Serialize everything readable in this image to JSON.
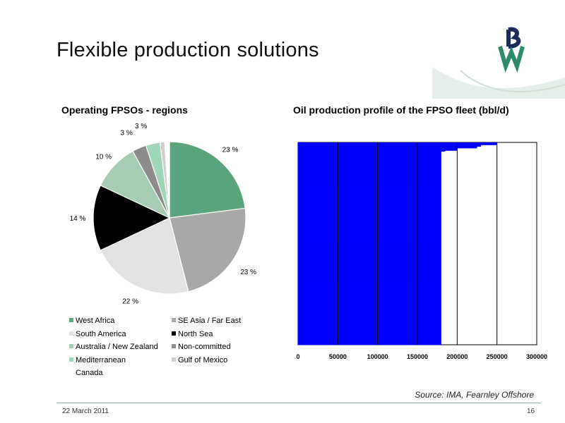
{
  "slide": {
    "title": "Flexible production solutions",
    "logo_text": "BW",
    "source": "Source: IMA, Fearnley Offshore",
    "date": "22 March  2011",
    "page_number": "16"
  },
  "colors": {
    "bar_fill": "#0000ff",
    "logo_green": "#2f8a6a",
    "logo_navy": "#1c2c5a",
    "footer_line": "#7fb9a6"
  },
  "chart_data": [
    {
      "type": "pie",
      "title": "Operating FPSOs - regions",
      "legend_position": "bottom",
      "categories": [
        "West Africa",
        "SE Asia / Far East",
        "South America",
        "North Sea",
        "Australia / New Zealand",
        "Non-committed",
        "Mediterranean",
        "Gulf of Mexico",
        "Canada"
      ],
      "values": [
        23,
        23,
        22,
        14,
        10,
        3,
        3,
        1,
        1
      ],
      "labels": [
        "23 %",
        "23 %",
        "22 %",
        "14 %",
        "10 %",
        "3 %",
        "3 %",
        "1 %",
        "1 %"
      ],
      "colors": [
        "#5aa57c",
        "#a8a8a8",
        "#e2e2e2",
        "#000000",
        "#a6ccb4",
        "#8c8c8c",
        "#9fd6b8",
        "#cfcfcf",
        "#ffffff"
      ]
    },
    {
      "type": "bar",
      "orientation": "horizontal",
      "title": "Oil production profile of the FPSO fleet (bbl/d)",
      "xlim": [
        0,
        300000
      ],
      "x_ticks": [
        0,
        50000,
        100000,
        150000,
        200000,
        250000,
        300000
      ],
      "x_tick_labels": [
        "0",
        "50000",
        "100000",
        "150000",
        "200000",
        "250000",
        "300000"
      ],
      "grid": "vertical",
      "values": [
        250000,
        250000,
        250000,
        230000,
        230000,
        225000,
        225000,
        200000,
        200000,
        200000,
        185000,
        180000,
        180000,
        180000,
        180000,
        180000,
        180000,
        180000,
        180000,
        180000,
        180000,
        180000,
        180000,
        180000,
        180000,
        180000,
        180000,
        180000,
        180000,
        180000,
        180000,
        180000,
        180000,
        180000,
        180000,
        180000,
        180000,
        180000,
        180000,
        180000,
        180000,
        180000,
        180000,
        180000,
        180000,
        180000,
        180000,
        180000,
        180000,
        180000,
        180000,
        180000,
        180000,
        180000,
        180000,
        180000,
        180000,
        180000,
        180000,
        180000,
        180000,
        180000,
        180000,
        180000,
        180000,
        180000,
        180000,
        180000,
        180000,
        180000,
        180000,
        180000,
        180000,
        180000,
        180000,
        180000,
        180000,
        180000,
        180000,
        180000,
        180000,
        180000,
        180000,
        180000,
        180000,
        180000,
        180000,
        180000,
        180000,
        180000,
        180000,
        180000,
        180000,
        180000,
        180000,
        180000,
        180000,
        180000,
        180000,
        180000,
        180000,
        180000,
        180000,
        180000,
        180000,
        180000,
        180000,
        180000,
        180000,
        180000,
        180000,
        180000,
        180000,
        180000,
        180000,
        180000,
        180000,
        180000,
        180000,
        180000,
        180000,
        180000,
        180000,
        180000,
        180000,
        180000,
        180000,
        180000,
        180000,
        180000,
        180000,
        180000,
        180000,
        180000,
        180000,
        180000,
        180000,
        180000,
        180000,
        180000,
        180000,
        180000,
        180000,
        180000,
        180000,
        180000,
        180000,
        180000,
        180000,
        180000,
        180000,
        180000,
        180000,
        180000,
        180000,
        180000,
        180000,
        180000,
        180000,
        180000,
        180000,
        180000,
        180000,
        180000,
        180000,
        180000,
        180000,
        180000,
        180000,
        180000,
        180000,
        180000,
        180000,
        180000,
        180000,
        180000,
        180000,
        180000,
        180000,
        180000,
        180000,
        180000,
        180000,
        180000,
        180000,
        180000,
        180000,
        180000,
        180000,
        180000,
        180000,
        180000,
        180000,
        180000,
        180000,
        180000,
        180000,
        180000,
        180000,
        180000,
        180000,
        180000,
        180000,
        180000,
        180000,
        180000,
        180000,
        180000,
        180000,
        180000,
        180000,
        180000,
        180000,
        180000,
        180000,
        180000,
        180000,
        180000,
        180000,
        180000,
        180000,
        180000,
        180000,
        180000,
        180000,
        180000,
        180000,
        180000,
        180000,
        180000,
        180000,
        180000,
        180000,
        180000,
        180000,
        180000,
        180000,
        180000,
        180000,
        180000,
        180000,
        180000,
        180000,
        180000,
        180000,
        180000,
        180000,
        180000,
        180000,
        180000,
        180000
      ]
    }
  ]
}
